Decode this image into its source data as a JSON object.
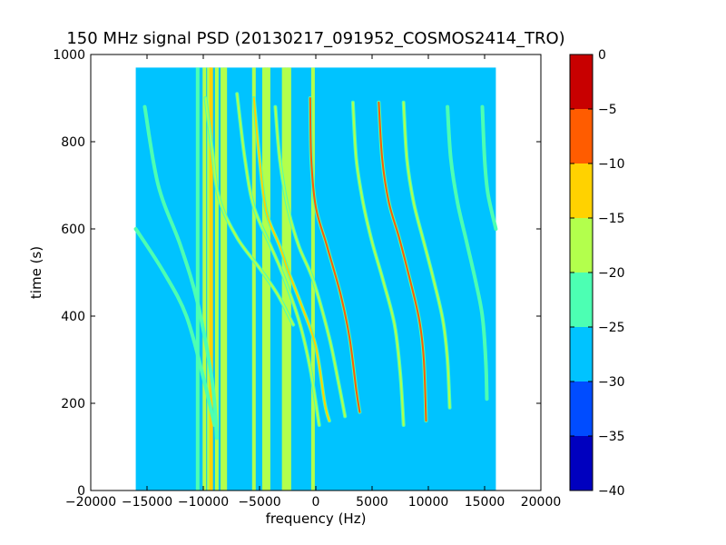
{
  "chart_data": {
    "type": "heatmap",
    "title": "150 MHz signal PSD (20130217_091952_COSMOS2414_TRO)",
    "xlabel": "frequency (Hz)",
    "ylabel": "time (s)",
    "xlim": [
      -20000,
      20000
    ],
    "ylim": [
      0,
      1000
    ],
    "xticks": [
      -20000,
      -15000,
      -10000,
      -5000,
      0,
      5000,
      10000,
      15000,
      20000
    ],
    "yticks": [
      0,
      200,
      400,
      600,
      800,
      1000
    ],
    "grid": false,
    "data_extent": {
      "x": [
        -16000,
        16000
      ],
      "y": [
        0,
        970
      ]
    },
    "background_level": -27.5,
    "colorbar": {
      "levels": [
        -40,
        -35,
        -30,
        -25,
        -20,
        -15,
        -10,
        -5,
        0
      ],
      "ticks": [
        0,
        -5,
        -10,
        -15,
        -20,
        -25,
        -30,
        -35,
        -40
      ],
      "colors": [
        "#0000bf",
        "#004cff",
        "#00c3ff",
        "#4cffb3",
        "#b3ff4c",
        "#ffd200",
        "#ff5c00",
        "#c80000"
      ]
    },
    "vertical_lines": [
      {
        "x": -10500,
        "level": -23
      },
      {
        "x": -9900,
        "level": -18
      },
      {
        "x": -9500,
        "level": -16
      },
      {
        "x": -9300,
        "level": -12
      },
      {
        "x": -8800,
        "level": -18
      },
      {
        "x": -8300,
        "level": -18
      },
      {
        "x": -8050,
        "level": -16
      },
      {
        "x": -5500,
        "level": -18
      },
      {
        "x": -4600,
        "level": -18
      },
      {
        "x": -4400,
        "level": -16
      },
      {
        "x": -4200,
        "level": -18
      },
      {
        "x": -2850,
        "level": -16
      },
      {
        "x": -2600,
        "level": -16
      },
      {
        "x": -2350,
        "level": -18
      },
      {
        "x": -250,
        "level": -20
      }
    ],
    "traces": [
      {
        "level": -22,
        "points": [
          [
            -16000,
            600
          ],
          [
            -13500,
            500
          ],
          [
            -11500,
            400
          ],
          [
            -10000,
            260
          ],
          [
            -9000,
            150
          ]
        ]
      },
      {
        "level": -22,
        "points": [
          [
            -15200,
            880
          ],
          [
            -14000,
            700
          ],
          [
            -12000,
            560
          ],
          [
            -10500,
            430
          ],
          [
            -9200,
            250
          ],
          [
            -8800,
            120
          ]
        ]
      },
      {
        "level": -20,
        "points": [
          [
            -9800,
            900
          ],
          [
            -9200,
            780
          ],
          [
            -8600,
            670
          ],
          [
            -7000,
            580
          ],
          [
            -5000,
            510
          ],
          [
            -3400,
            450
          ],
          [
            -2000,
            380
          ]
        ]
      },
      {
        "level": -18,
        "points": [
          [
            -7000,
            910
          ],
          [
            -6300,
            760
          ],
          [
            -5500,
            650
          ],
          [
            -4000,
            560
          ],
          [
            -3000,
            500
          ],
          [
            -1500,
            390
          ],
          [
            -500,
            280
          ],
          [
            300,
            150
          ]
        ]
      },
      {
        "level": -12,
        "points": [
          [
            -5500,
            900
          ],
          [
            -5000,
            760
          ],
          [
            -4400,
            640
          ],
          [
            -3200,
            560
          ],
          [
            -2400,
            500
          ],
          [
            -1200,
            420
          ],
          [
            0,
            330
          ],
          [
            800,
            200
          ],
          [
            1200,
            160
          ]
        ]
      },
      {
        "level": -18,
        "points": [
          [
            -3600,
            880
          ],
          [
            -3200,
            760
          ],
          [
            -2500,
            650
          ],
          [
            -1500,
            560
          ],
          [
            -200,
            480
          ],
          [
            1200,
            350
          ],
          [
            2000,
            250
          ],
          [
            2600,
            170
          ]
        ]
      },
      {
        "level": -10,
        "points": [
          [
            -500,
            900
          ],
          [
            -400,
            760
          ],
          [
            0,
            650
          ],
          [
            1000,
            560
          ],
          [
            2200,
            450
          ],
          [
            3000,
            350
          ],
          [
            3600,
            230
          ],
          [
            3900,
            180
          ]
        ]
      },
      {
        "level": -18,
        "points": [
          [
            3300,
            890
          ],
          [
            3600,
            760
          ],
          [
            4200,
            660
          ],
          [
            5000,
            570
          ],
          [
            6000,
            480
          ],
          [
            7000,
            380
          ],
          [
            7500,
            270
          ],
          [
            7800,
            150
          ]
        ]
      },
      {
        "level": -10,
        "points": [
          [
            5600,
            890
          ],
          [
            5900,
            760
          ],
          [
            6500,
            660
          ],
          [
            7400,
            580
          ],
          [
            8400,
            480
          ],
          [
            9200,
            390
          ],
          [
            9600,
            300
          ],
          [
            9800,
            160
          ]
        ]
      },
      {
        "level": -18,
        "points": [
          [
            7800,
            890
          ],
          [
            8100,
            760
          ],
          [
            8700,
            660
          ],
          [
            9600,
            570
          ],
          [
            10500,
            480
          ],
          [
            11300,
            390
          ],
          [
            11700,
            300
          ],
          [
            11900,
            190
          ]
        ]
      },
      {
        "level": -22,
        "points": [
          [
            11700,
            880
          ],
          [
            12000,
            760
          ],
          [
            12600,
            660
          ],
          [
            13400,
            570
          ],
          [
            14200,
            480
          ],
          [
            14800,
            400
          ],
          [
            15100,
            300
          ],
          [
            15200,
            210
          ]
        ]
      },
      {
        "level": -22,
        "points": [
          [
            14800,
            880
          ],
          [
            15000,
            760
          ],
          [
            15300,
            680
          ],
          [
            16000,
            600
          ]
        ]
      }
    ]
  }
}
